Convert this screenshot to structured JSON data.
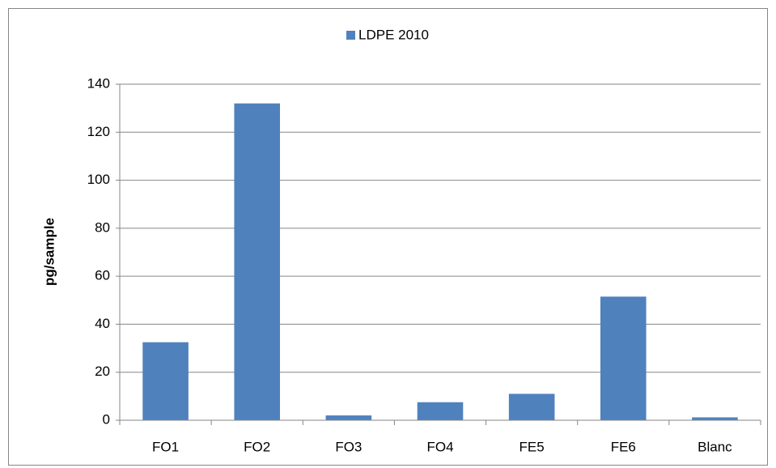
{
  "chart_data": {
    "type": "bar",
    "series": [
      {
        "name": "LDPE 2010",
        "color": "#4f81bd",
        "values": [
          32.5,
          132,
          2,
          7.5,
          11,
          51.5,
          1.2
        ]
      }
    ],
    "categories": [
      "FO1",
      "FO2",
      "FO3",
      "FO4",
      "FE5",
      "FE6",
      "Blanc"
    ],
    "ylabel": "pg/sample",
    "ylim": [
      0,
      140
    ],
    "yticks": [
      0,
      20,
      40,
      60,
      80,
      100,
      120,
      140
    ],
    "grid": true,
    "legend": "top"
  }
}
